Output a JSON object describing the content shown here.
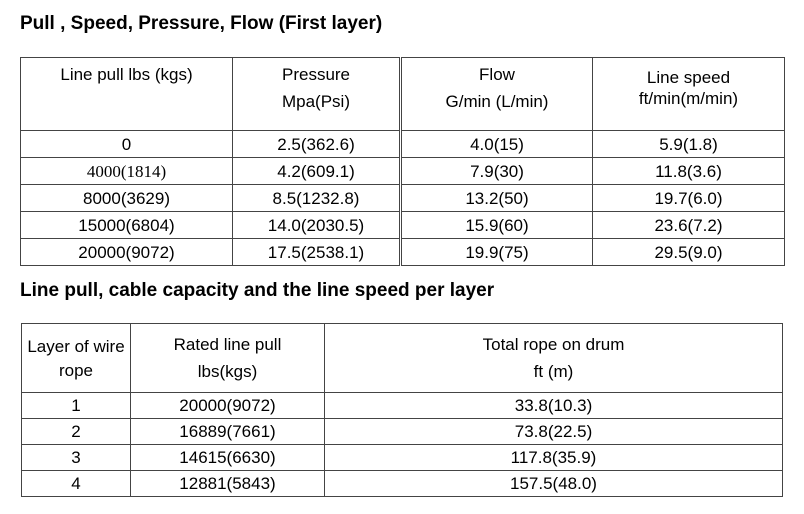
{
  "table1": {
    "title": "Pull , Speed, Pressure, Flow (First layer)",
    "headers": [
      {
        "line1": "Line pull lbs (kgs)",
        "line2": ""
      },
      {
        "line1": "Pressure",
        "line2": "Mpa(Psi)"
      },
      {
        "line1": "Flow",
        "line2": "G/min (L/min)"
      },
      {
        "line1": "Line speed",
        "line2": "ft/min(m/min)"
      }
    ],
    "rows": [
      [
        "0",
        "2.5(362.6)",
        "4.0(15)",
        "5.9(1.8)"
      ],
      [
        "4000(1814)",
        "4.2(609.1)",
        "7.9(30)",
        "11.8(3.6)"
      ],
      [
        "8000(3629)",
        "8.5(1232.8)",
        "13.2(50)",
        "19.7(6.0)"
      ],
      [
        "15000(6804)",
        "14.0(2030.5)",
        "15.9(60)",
        "23.6(7.2)"
      ],
      [
        "20000(9072)",
        "17.5(2538.1)",
        "19.9(75)",
        "29.5(9.0)"
      ]
    ]
  },
  "table2": {
    "title": "Line pull, cable capacity and the line speed per layer",
    "headers": [
      {
        "line1": "Layer of wire",
        "line2": "rope"
      },
      {
        "line1": "Rated line pull",
        "line2": "lbs(kgs)"
      },
      {
        "line1": "Total rope on drum",
        "line2": "ft (m)"
      }
    ],
    "rows": [
      [
        "1",
        "20000(9072)",
        "33.8(10.3)"
      ],
      [
        "2",
        "16889(7661)",
        "73.8(22.5)"
      ],
      [
        "3",
        "14615(6630)",
        "117.8(35.9)"
      ],
      [
        "4",
        "12881(5843)",
        "157.5(48.0)"
      ]
    ]
  }
}
